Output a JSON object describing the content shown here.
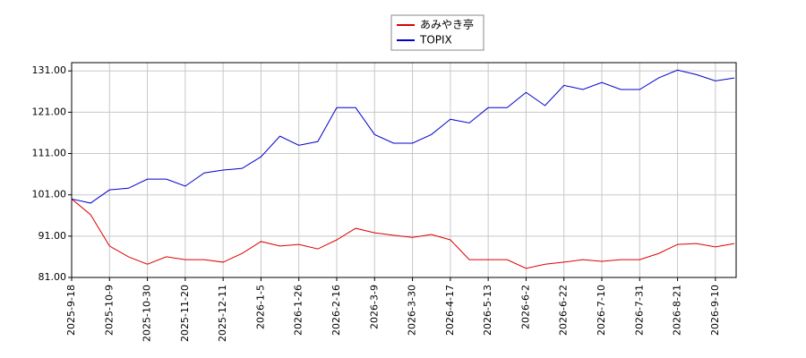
{
  "chart_data": {
    "type": "line",
    "categories": [
      "2025-9-18",
      null,
      "2025-10-9",
      null,
      "2025-10-30",
      null,
      "2025-11-20",
      null,
      "2025-12-11",
      null,
      "2026-1-5",
      null,
      "2026-1-26",
      null,
      "2026-2-16",
      null,
      "2026-3-9",
      null,
      "2026-3-30",
      null,
      "2026-4-17",
      null,
      "2026-5-13",
      null,
      "2026-6-2",
      null,
      "2026-6-22",
      null,
      "2026-7-10",
      null,
      "2026-7-31",
      null,
      "2026-8-21",
      null,
      "2026-9-10",
      null
    ],
    "series": [
      {
        "name": "あみやき亭",
        "color": "#dd0000",
        "values": [
          100,
          96.2,
          88.6,
          86.0,
          84.2,
          86.0,
          85.3,
          85.3,
          84.7,
          86.8,
          89.7,
          88.6,
          89.0,
          87.9,
          90.1,
          92.9,
          91.8,
          91.2,
          90.7,
          91.4,
          90.1,
          85.3,
          85.3,
          85.3,
          83.2,
          84.2,
          84.7,
          85.3,
          84.9,
          85.3,
          85.3,
          86.8,
          89.0,
          89.2,
          88.4,
          89.2
        ]
      },
      {
        "name": "TOPIX",
        "color": "#0000cc",
        "values": [
          100,
          99.0,
          102.2,
          102.6,
          104.8,
          104.8,
          103.1,
          106.3,
          107.0,
          107.4,
          110.2,
          115.2,
          113.0,
          113.9,
          122.1,
          122.1,
          115.6,
          113.5,
          113.5,
          115.6,
          119.3,
          118.4,
          122.1,
          122.1,
          125.8,
          122.6,
          127.5,
          126.5,
          128.2,
          126.5,
          126.5,
          129.3,
          131.2,
          130.1,
          128.6,
          129.3
        ]
      }
    ],
    "ylim": [
      81,
      133
    ],
    "yticks": [
      {
        "value": 81,
        "label": "81.00"
      },
      {
        "value": 91,
        "label": "91.00"
      },
      {
        "value": 101,
        "label": "101.00"
      },
      {
        "value": 111,
        "label": "111.00"
      },
      {
        "value": 121,
        "label": "121.00"
      },
      {
        "value": 131,
        "label": "131.00"
      }
    ],
    "grid": true
  }
}
